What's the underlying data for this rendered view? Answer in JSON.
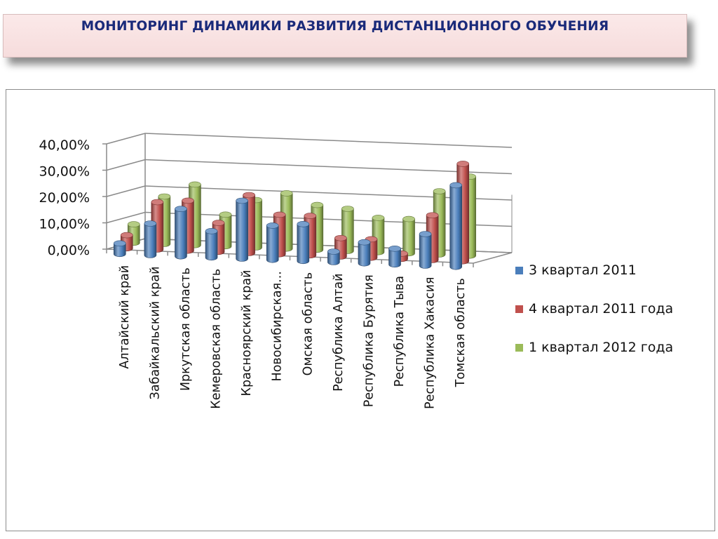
{
  "header": {
    "title": "МОНИТОРИНГ ДИНАМИКИ РАЗВИТИЯ ДИСТАНЦИОННОГО ОБУЧЕНИЯ"
  },
  "chart_data": {
    "type": "bar",
    "categories": [
      "Алтайский край",
      "Забайкальский край",
      "Иркутская область",
      "Кемеровская область",
      "Красноярский край",
      "Новосибирская...",
      "Омская область",
      "Республика Алтай",
      "Республика Бурятия",
      "Республика Тыва",
      "Республика Хакасия",
      "Томская область"
    ],
    "series": [
      {
        "name": "3 квартал 2011",
        "color": "#4a7ebb",
        "values": [
          0.04,
          0.12,
          0.18,
          0.1,
          0.22,
          0.13,
          0.14,
          0.04,
          0.08,
          0.06,
          0.12,
          0.31
        ]
      },
      {
        "name": "4 квартал 2011 года",
        "color": "#c0504d",
        "values": [
          0.05,
          0.18,
          0.19,
          0.11,
          0.22,
          0.15,
          0.15,
          0.07,
          0.07,
          0.02,
          0.17,
          0.37
        ]
      },
      {
        "name": "1 квартал 2012 года",
        "color": "#9bbb59",
        "values": [
          0.07,
          0.18,
          0.23,
          0.12,
          0.18,
          0.21,
          0.17,
          0.16,
          0.13,
          0.13,
          0.24,
          0.3
        ]
      }
    ],
    "ylim": [
      0,
      0.4
    ],
    "yticks": [
      "0,00%",
      "10,00%",
      "20,00%",
      "30,00%",
      "40,00%"
    ],
    "legend_position": "right",
    "grid": true
  }
}
